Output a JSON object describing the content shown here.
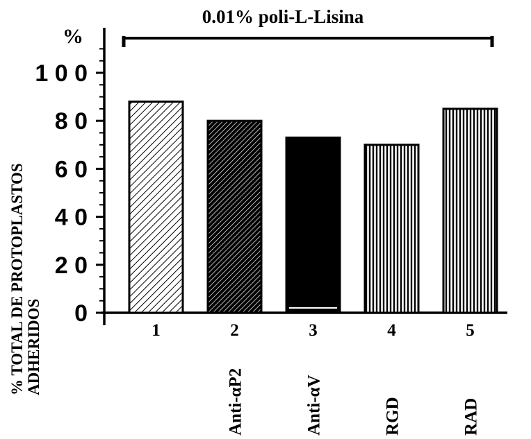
{
  "colors": {
    "ink": "#000000",
    "background": "#ffffff"
  },
  "chart_data": {
    "type": "bar",
    "title": "",
    "ylabel_lines": [
      "% TOTAL DE PROTOPLASTOS",
      "ADHERIDOS"
    ],
    "y_unit": "%",
    "ylim": [
      0,
      110
    ],
    "yticks": [
      0,
      20,
      40,
      60,
      80,
      100
    ],
    "ytick_labels": [
      "0",
      "2 0",
      "4 0",
      "6 0",
      "8 0",
      "1 0 0"
    ],
    "categories": [
      "1",
      "2",
      "3",
      "4",
      "5"
    ],
    "category_labels": [
      "",
      "Anti-αP2",
      "Anti-αV",
      "RGD",
      "RAD"
    ],
    "values": [
      88,
      80,
      73,
      70,
      85
    ],
    "patterns": [
      "diag-light",
      "diag-dark",
      "solid",
      "vertical",
      "vertical"
    ],
    "bracket_label": "0.01% poli-L-Lisina",
    "grid": false
  }
}
